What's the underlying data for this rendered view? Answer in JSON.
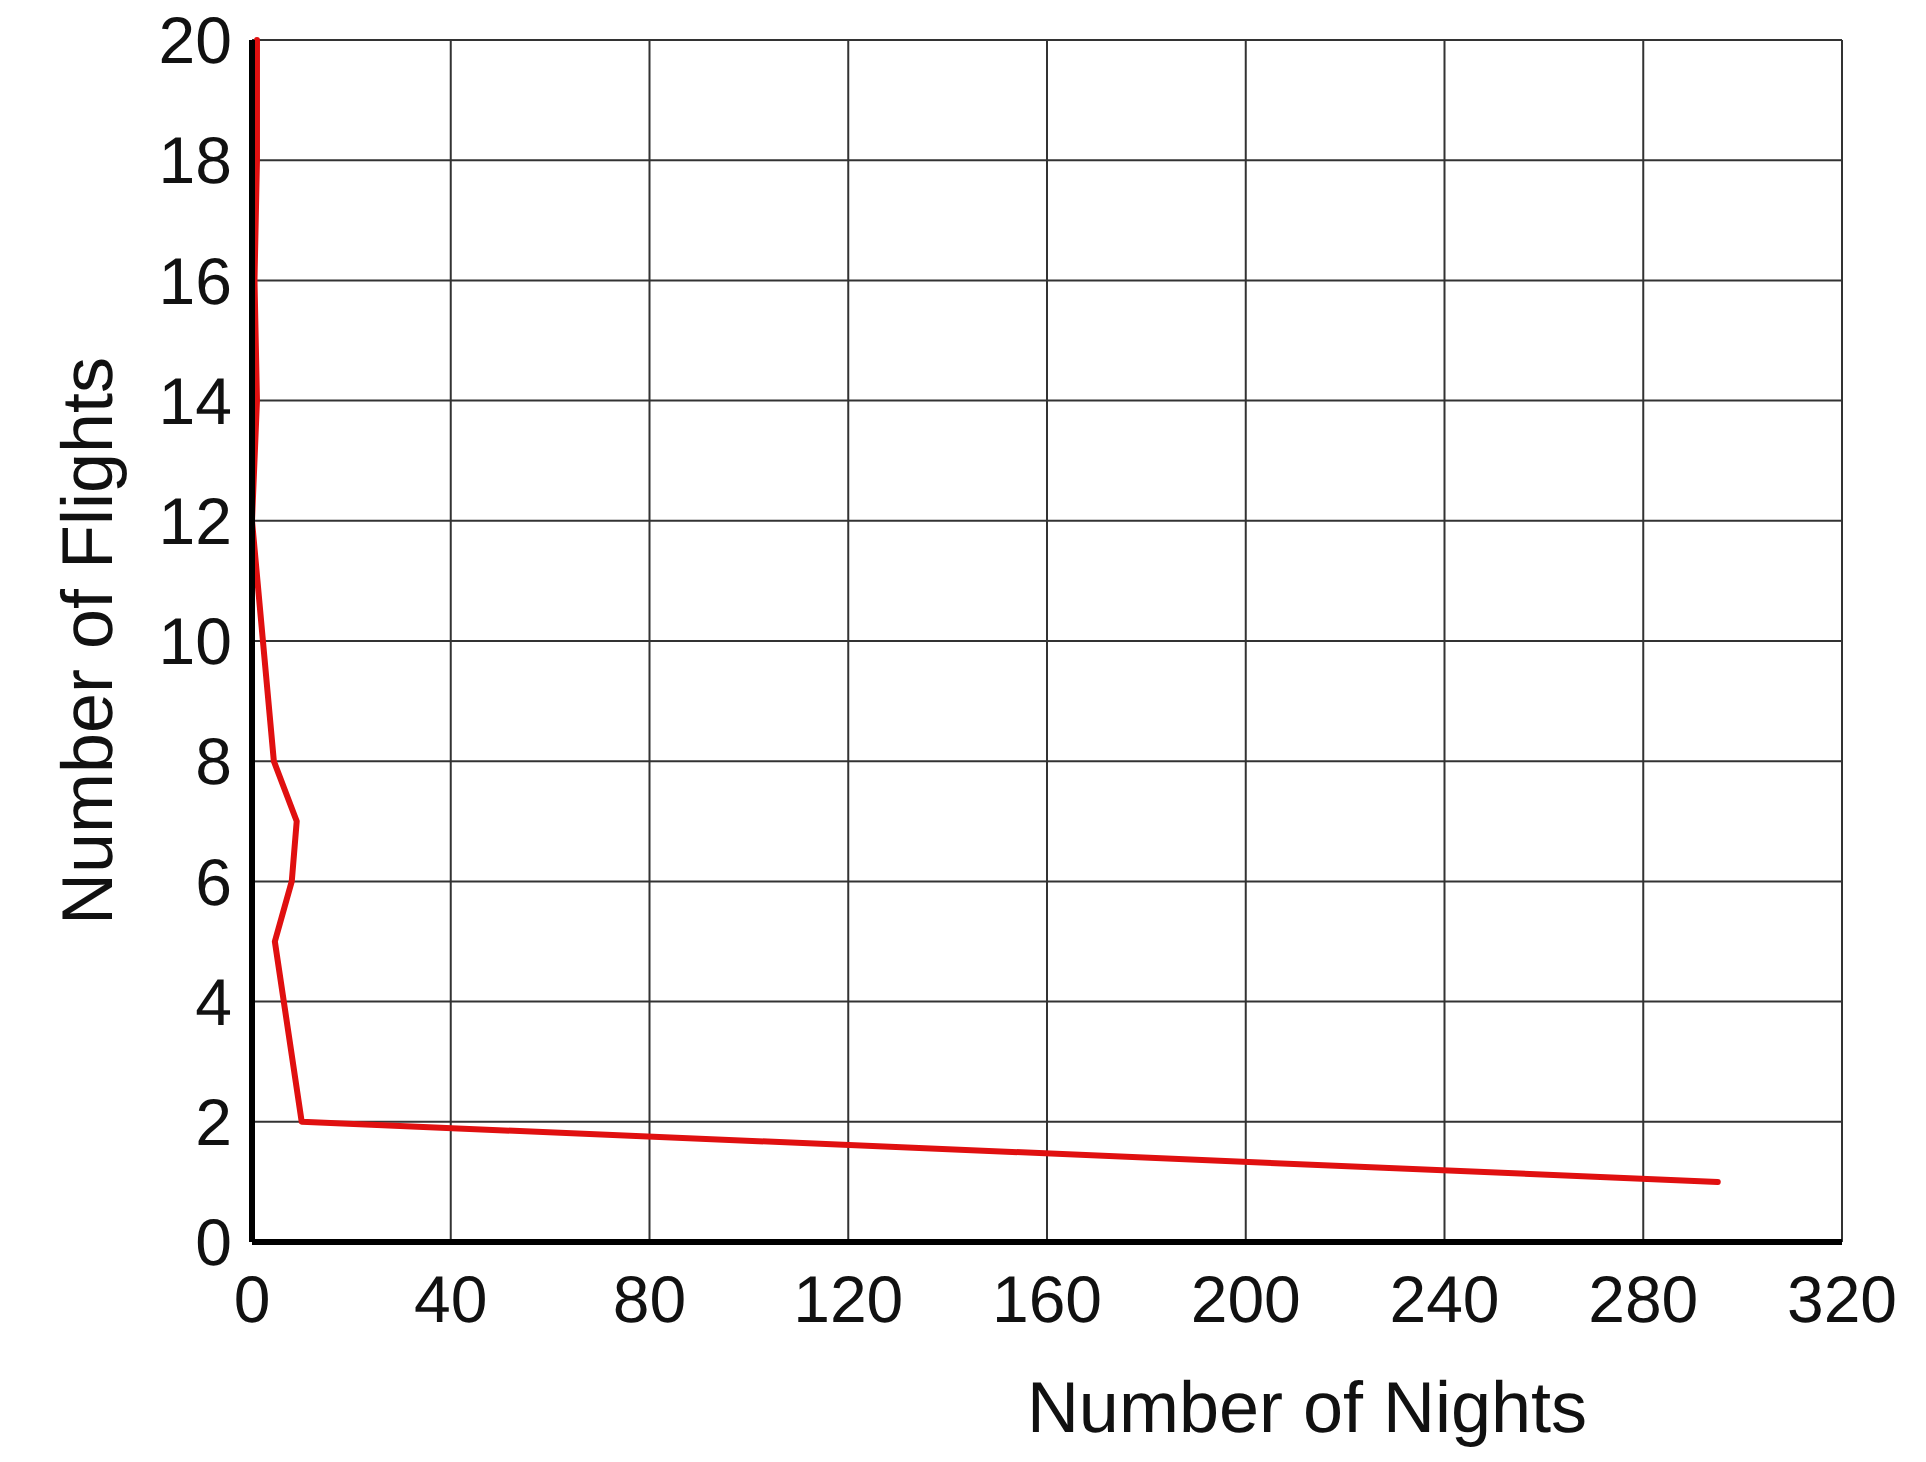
{
  "chart_data": {
    "type": "line",
    "xlabel": "Number of Nights",
    "ylabel": "Number of Flights",
    "xlim": [
      0,
      320
    ],
    "xticks": [
      0,
      40,
      80,
      120,
      160,
      200,
      240,
      280,
      320
    ],
    "ylim": [
      0,
      20
    ],
    "yticks": [
      0,
      2,
      4,
      6,
      8,
      10,
      12,
      14,
      16,
      18,
      20
    ],
    "grid": true,
    "marker": "none",
    "line_style": "solid",
    "series": [
      {
        "color": "#e01010",
        "x": [
          295,
          10,
          4.6,
          8,
          9,
          4.4,
          0,
          1,
          0.5,
          1,
          1
        ],
        "values": [
          1,
          2,
          5,
          6,
          7,
          8,
          12,
          14,
          16,
          18,
          20
        ]
      }
    ]
  }
}
